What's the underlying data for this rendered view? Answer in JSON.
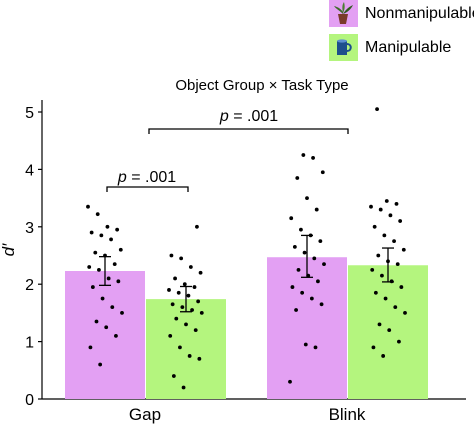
{
  "chart_data": {
    "type": "bar",
    "title": "Object Group × Task Type",
    "ylabel": "d′",
    "xlabel": "",
    "ylim": [
      0,
      5
    ],
    "yticks": [
      "0",
      "1",
      "2",
      "3",
      "4",
      "5"
    ],
    "categories": [
      "Gap",
      "Blink"
    ],
    "legend": {
      "placement": "top-right",
      "entries": [
        {
          "label": "Nonmanipulable",
          "icon": "potted-plant-icon"
        },
        {
          "label": "Manipulable",
          "icon": "mug-icon"
        }
      ]
    },
    "series": [
      {
        "name": "Nonmanipulable",
        "color": "#e3a0f3",
        "values": [
          2.23,
          2.47
        ],
        "error_low": [
          1.98,
          2.12
        ],
        "error_high": [
          2.48,
          2.85
        ],
        "points": [
          [
            3.35,
            3.22,
            3.0,
            2.95,
            2.9,
            2.85,
            2.78,
            2.6,
            2.55,
            2.5,
            2.35,
            2.3,
            2.25,
            2.1,
            2.05,
            1.95,
            1.75,
            1.6,
            1.5,
            1.35,
            1.25,
            1.1,
            0.9,
            0.6
          ],
          [
            4.25,
            4.2,
            3.95,
            3.85,
            3.5,
            3.3,
            3.15,
            2.95,
            2.85,
            2.75,
            2.65,
            2.55,
            2.45,
            2.35,
            2.25,
            2.15,
            2.05,
            1.95,
            1.85,
            1.75,
            1.65,
            1.55,
            0.95,
            0.9,
            0.3
          ]
        ]
      },
      {
        "name": "Manipulable",
        "color": "#b4f57e",
        "values": [
          1.74,
          2.33
        ],
        "error_low": [
          1.52,
          2.04
        ],
        "error_high": [
          1.96,
          2.63
        ],
        "points": [
          [
            3.0,
            2.5,
            2.45,
            2.3,
            2.2,
            2.1,
            2.0,
            1.95,
            1.9,
            1.85,
            1.8,
            1.7,
            1.65,
            1.6,
            1.55,
            1.5,
            1.4,
            1.3,
            1.2,
            1.1,
            0.9,
            0.75,
            0.7,
            0.4,
            0.2
          ],
          [
            5.05,
            3.45,
            3.4,
            3.35,
            3.3,
            3.2,
            3.1,
            3.0,
            2.85,
            2.75,
            2.6,
            2.5,
            2.4,
            2.35,
            2.25,
            2.15,
            2.05,
            1.95,
            1.85,
            1.75,
            1.6,
            1.5,
            1.3,
            1.2,
            1.0,
            0.9,
            0.75
          ]
        ]
      }
    ],
    "annotations": [
      {
        "text": "p = .001",
        "spans": "Gap Nonmanipulable vs Gap Manipulable"
      },
      {
        "text": "p = .001",
        "spans": "Gap vs Blink"
      }
    ]
  }
}
